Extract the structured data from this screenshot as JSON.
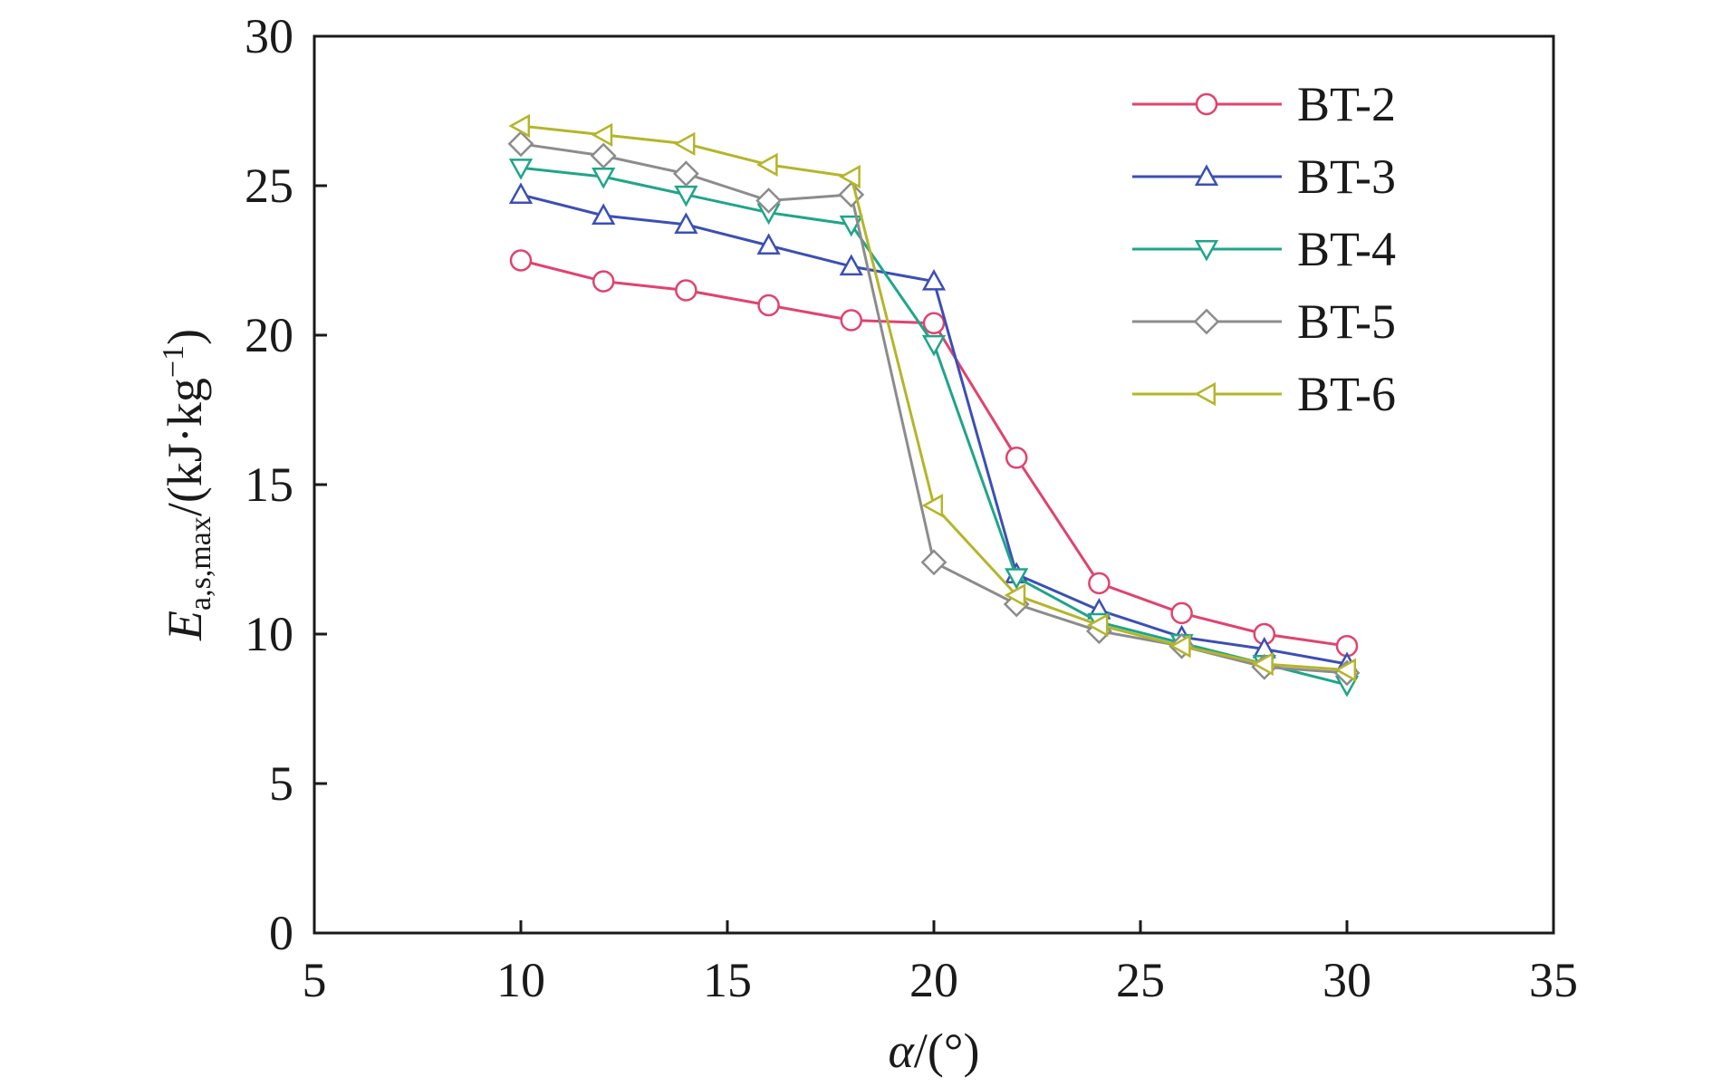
{
  "chart_data": {
    "type": "line",
    "title": "",
    "xlabel": {
      "symbol": "α",
      "unit": "/(°)"
    },
    "ylabel": {
      "symbol": "E",
      "subscript": "a,s,max",
      "unit": "/(kJ·kg",
      "unit_exp": "−1",
      "unit_close": ")"
    },
    "xlim": [
      5,
      35
    ],
    "ylim": [
      0,
      30
    ],
    "xticks": [
      5,
      10,
      15,
      20,
      25,
      30,
      35
    ],
    "yticks": [
      0,
      5,
      10,
      15,
      20,
      25,
      30
    ],
    "grid": false,
    "legend_position": "top-right",
    "x": [
      10,
      12,
      14,
      16,
      18,
      20,
      22,
      24,
      26,
      28,
      30
    ],
    "series": [
      {
        "name": "BT-2",
        "marker": "circle",
        "color": "#e0436e",
        "values": [
          22.5,
          21.8,
          21.5,
          21.0,
          20.5,
          20.4,
          15.9,
          11.7,
          10.7,
          10.0,
          9.6
        ]
      },
      {
        "name": "BT-3",
        "marker": "triangle-up",
        "color": "#3c4fb4",
        "values": [
          24.7,
          24.0,
          23.7,
          23.0,
          22.3,
          21.8,
          12.0,
          10.8,
          9.9,
          9.5,
          9.0
        ]
      },
      {
        "name": "BT-4",
        "marker": "triangle-down",
        "color": "#1fa58a",
        "values": [
          25.6,
          25.3,
          24.7,
          24.1,
          23.7,
          19.7,
          11.9,
          10.4,
          9.7,
          9.0,
          8.3
        ]
      },
      {
        "name": "BT-5",
        "marker": "diamond",
        "color": "#8c8c8c",
        "values": [
          26.4,
          26.0,
          25.4,
          24.5,
          24.7,
          12.4,
          11.0,
          10.1,
          9.6,
          8.9,
          8.7
        ]
      },
      {
        "name": "BT-6",
        "marker": "triangle-left",
        "color": "#b5b52a",
        "values": [
          27.0,
          26.7,
          26.4,
          25.7,
          25.3,
          14.3,
          11.3,
          10.3,
          9.6,
          9.0,
          8.8
        ]
      }
    ]
  }
}
